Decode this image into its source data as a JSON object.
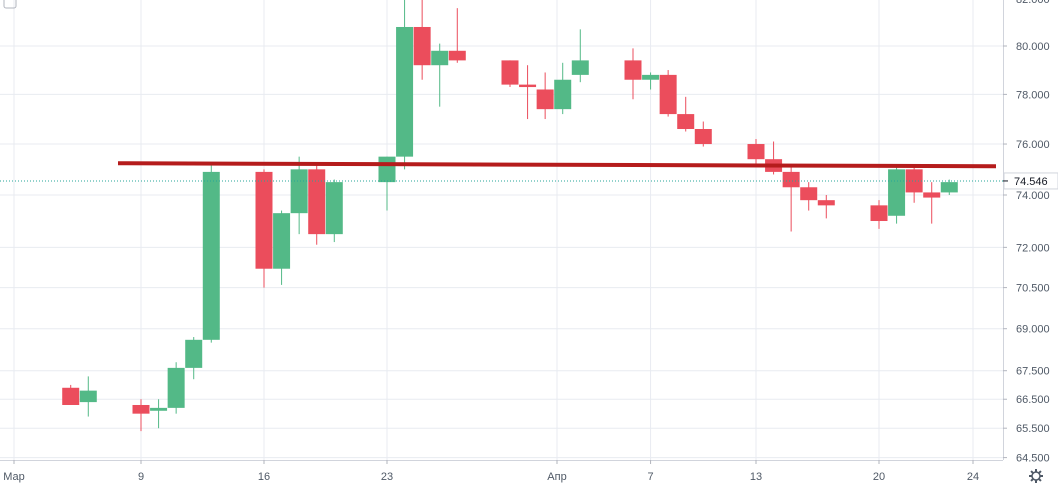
{
  "chart_data": {
    "type": "candlestick",
    "y_axis_ticks": [
      "82.000",
      "80.000",
      "78.000",
      "76.000",
      "74.000",
      "72.000",
      "70.500",
      "69.000",
      "67.500",
      "66.500",
      "65.500",
      "64.500"
    ],
    "x_axis_ticks": [
      "Мар",
      "9",
      "16",
      "23",
      "Апр",
      "7",
      "13",
      "20",
      "24"
    ],
    "last_price_label": "74.546",
    "last_price": 74.546,
    "resistance_level": 75.2,
    "log_scale": true,
    "grid": true,
    "colors": {
      "up": "#53b987",
      "down": "#eb4d5c",
      "grid": "#e8ebf1",
      "level_line": "#b51c1c",
      "last_price_line": "#26a69a",
      "axis_text": "#4f5966"
    },
    "candles": [
      {
        "date": "2020-03-05",
        "open": 66.9,
        "high": 67.0,
        "low": 66.3,
        "close": 66.3
      },
      {
        "date": "2020-03-06",
        "open": 66.4,
        "high": 67.3,
        "low": 65.9,
        "close": 66.8
      },
      {
        "date": "2020-03-09",
        "open": 66.3,
        "high": 66.5,
        "low": 65.4,
        "close": 66.0
      },
      {
        "date": "2020-03-10",
        "open": 66.1,
        "high": 66.5,
        "low": 65.5,
        "close": 66.2
      },
      {
        "date": "2020-03-11",
        "open": 66.2,
        "high": 67.8,
        "low": 66.0,
        "close": 67.6
      },
      {
        "date": "2020-03-12",
        "open": 67.6,
        "high": 68.7,
        "low": 67.2,
        "close": 68.6
      },
      {
        "date": "2020-03-13",
        "open": 68.6,
        "high": 75.2,
        "low": 68.5,
        "close": 74.9
      },
      {
        "date": "2020-03-16",
        "open": 74.9,
        "high": 75.0,
        "low": 70.5,
        "close": 71.2
      },
      {
        "date": "2020-03-17",
        "open": 71.2,
        "high": 73.4,
        "low": 70.6,
        "close": 73.3
      },
      {
        "date": "2020-03-18",
        "open": 73.3,
        "high": 75.5,
        "low": 72.5,
        "close": 75.0
      },
      {
        "date": "2020-03-19",
        "open": 75.0,
        "high": 75.2,
        "low": 72.1,
        "close": 72.5
      },
      {
        "date": "2020-03-20",
        "open": 72.5,
        "high": 74.6,
        "low": 72.2,
        "close": 74.5
      },
      {
        "date": "2020-03-23",
        "open": 74.5,
        "high": 75.5,
        "low": 73.4,
        "close": 75.5
      },
      {
        "date": "2020-03-24",
        "open": 75.5,
        "high": 82.3,
        "low": 75.0,
        "close": 80.8
      },
      {
        "date": "2020-03-25",
        "open": 80.8,
        "high": 82.2,
        "low": 78.6,
        "close": 79.2
      },
      {
        "date": "2020-03-26",
        "open": 79.2,
        "high": 80.1,
        "low": 77.5,
        "close": 79.8
      },
      {
        "date": "2020-03-27",
        "open": 79.8,
        "high": 81.6,
        "low": 79.3,
        "close": 79.4
      },
      {
        "date": "2020-03-30",
        "open": 79.4,
        "high": 79.4,
        "low": 78.3,
        "close": 78.4
      },
      {
        "date": "2020-03-31",
        "open": 78.4,
        "high": 79.2,
        "low": 77.0,
        "close": 78.3
      },
      {
        "date": "2020-04-01",
        "open": 78.2,
        "high": 78.9,
        "low": 77.0,
        "close": 77.4
      },
      {
        "date": "2020-04-02",
        "open": 77.4,
        "high": 79.3,
        "low": 77.2,
        "close": 78.6
      },
      {
        "date": "2020-04-03",
        "open": 78.8,
        "high": 80.7,
        "low": 78.5,
        "close": 79.4
      },
      {
        "date": "2020-04-06",
        "open": 79.4,
        "high": 79.9,
        "low": 77.8,
        "close": 78.6
      },
      {
        "date": "2020-04-07",
        "open": 78.6,
        "high": 78.9,
        "low": 78.2,
        "close": 78.8
      },
      {
        "date": "2020-04-08",
        "open": 78.8,
        "high": 79.0,
        "low": 77.1,
        "close": 77.2
      },
      {
        "date": "2020-04-09",
        "open": 77.2,
        "high": 77.9,
        "low": 76.5,
        "close": 76.6
      },
      {
        "date": "2020-04-10",
        "open": 76.6,
        "high": 76.9,
        "low": 75.9,
        "close": 76.0
      },
      {
        "date": "2020-04-13",
        "open": 76.0,
        "high": 76.2,
        "low": 75.1,
        "close": 75.4
      },
      {
        "date": "2020-04-14",
        "open": 75.4,
        "high": 76.1,
        "low": 74.8,
        "close": 74.9
      },
      {
        "date": "2020-04-15",
        "open": 74.9,
        "high": 75.2,
        "low": 72.6,
        "close": 74.3
      },
      {
        "date": "2020-04-16",
        "open": 74.3,
        "high": 74.5,
        "low": 73.4,
        "close": 73.8
      },
      {
        "date": "2020-04-17",
        "open": 73.8,
        "high": 74.0,
        "low": 73.1,
        "close": 73.6
      },
      {
        "date": "2020-04-20",
        "open": 73.6,
        "high": 73.8,
        "low": 72.7,
        "close": 73.0
      },
      {
        "date": "2020-04-21",
        "open": 73.2,
        "high": 75.2,
        "low": 72.9,
        "close": 75.0
      },
      {
        "date": "2020-04-22",
        "open": 75.0,
        "high": 75.1,
        "low": 73.7,
        "close": 74.1
      },
      {
        "date": "2020-04-23",
        "open": 74.1,
        "high": 74.5,
        "low": 72.9,
        "close": 73.9
      },
      {
        "date": "2020-04-24",
        "open": 74.1,
        "high": 74.6,
        "low": 74.0,
        "close": 74.5
      }
    ]
  }
}
